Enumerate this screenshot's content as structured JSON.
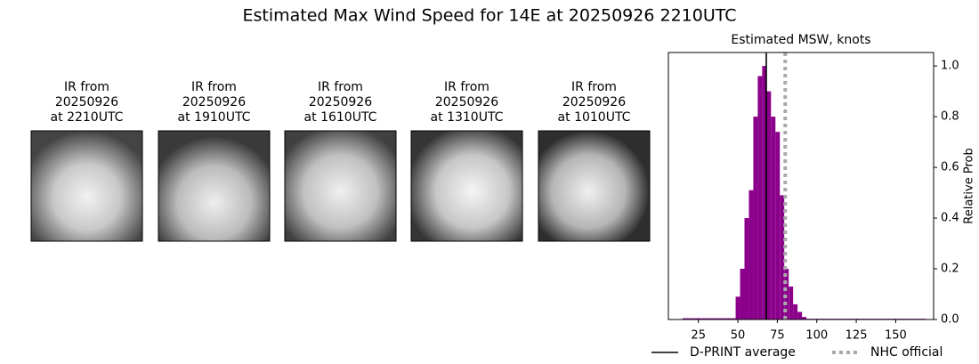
{
  "title": "Estimated Max Wind Speed for 14E at 20250926 2210UTC",
  "panels": [
    {
      "lines": [
        "IR from",
        "20250926",
        "at 2210UTC"
      ]
    },
    {
      "lines": [
        "IR from",
        "20250926",
        "at 1910UTC"
      ]
    },
    {
      "lines": [
        "IR from",
        "20250926",
        "at 1610UTC"
      ]
    },
    {
      "lines": [
        "IR from",
        "20250926",
        "at 1310UTC"
      ]
    },
    {
      "lines": [
        "IR from",
        "20250926",
        "at 1010UTC"
      ]
    }
  ],
  "chart_data": {
    "type": "histogram",
    "title": "Estimated MSW, knots",
    "y_label": "Relative Prob",
    "color": "#8b008b",
    "bins": [
      15,
      17.8,
      20.6,
      23.4,
      26.2,
      29,
      31.8,
      34.6,
      37.4,
      40.2,
      43,
      45.8,
      48.6,
      51.4,
      54.2,
      57,
      59.8,
      62.6,
      65.4,
      68.2,
      71,
      73.8,
      76.6,
      79.4,
      82.2,
      85,
      87.8,
      90.6,
      93.4,
      96.2,
      99,
      101.8,
      104.6,
      107.4,
      110.2,
      113,
      115.8,
      118.6,
      121.4,
      124.2,
      127,
      129.8,
      132.6,
      135.4,
      138.2,
      141,
      143.8,
      146.6,
      149.4,
      152.2,
      155,
      157.8,
      160.6,
      163.4,
      166.2,
      169
    ],
    "values": [
      0.005,
      0.005,
      0.005,
      0.005,
      0.005,
      0.005,
      0.005,
      0.005,
      0.005,
      0.005,
      0.005,
      0.005,
      0.09,
      0.2,
      0.4,
      0.51,
      0.8,
      0.96,
      1.0,
      0.9,
      0.8,
      0.74,
      0.49,
      0.2,
      0.13,
      0.06,
      0.03,
      0.01,
      0.003,
      0.003,
      0.003,
      0.003,
      0.003,
      0.003,
      0.003,
      0.003,
      0.003,
      0.003,
      0.003,
      0.003,
      0.003,
      0.003,
      0.003,
      0.003,
      0.003,
      0.003,
      0.003,
      0.003,
      0.003,
      0.003,
      0.003,
      0.003,
      0.003,
      0.003,
      0.003
    ],
    "xlim": [
      6,
      174
    ],
    "ylim": [
      0,
      1.053
    ],
    "xticks": [
      25,
      50,
      75,
      100,
      125,
      150
    ],
    "yticks": [
      {
        "value": 0,
        "label": "0.0"
      },
      {
        "value": 0.2,
        "label": "0.2"
      },
      {
        "value": 0.4,
        "label": "0.4"
      },
      {
        "value": 0.6,
        "label": "0.6"
      },
      {
        "value": 0.8,
        "label": "0.8"
      },
      {
        "value": 1.0,
        "label": "1.0"
      }
    ],
    "y_axis_side": "right",
    "reference_lines": [
      {
        "name": "D-PRINT average",
        "x": 68,
        "color": "#000000",
        "style": "solid"
      },
      {
        "name": "NHC official",
        "x": 80,
        "color": "#aaaaaa",
        "style": "dotted"
      }
    ]
  }
}
